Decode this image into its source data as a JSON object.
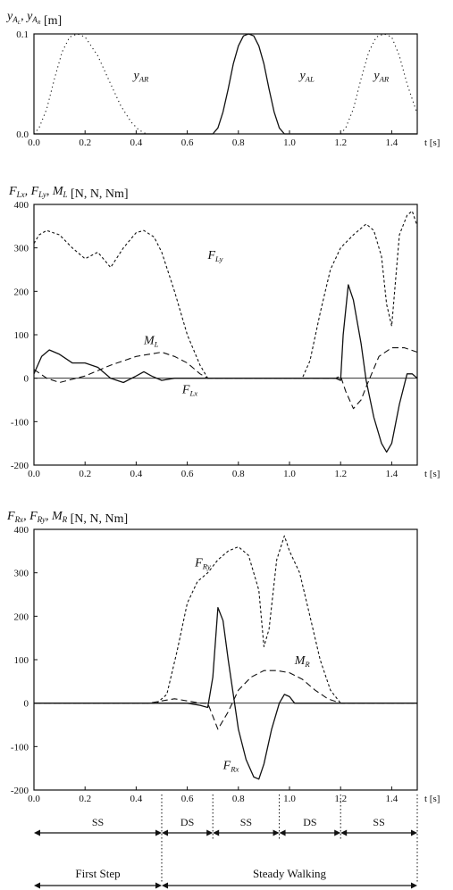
{
  "chart_data": [
    {
      "type": "line",
      "title": "y_{A_L}, y_{A_R}  [m]",
      "xlabel": "t [s]",
      "xlim": [
        0,
        1.5
      ],
      "ylim": [
        0,
        0.1
      ],
      "x_ticks": [
        "0.0",
        "0.2",
        "0.4",
        "0.6",
        "0.8",
        "1.0",
        "1.2",
        "1.4"
      ],
      "y_ticks": [
        "0.0",
        "0.1"
      ],
      "series": [
        {
          "name": "yAR",
          "style": "dotted",
          "x": [
            0.0,
            0.02,
            0.05,
            0.08,
            0.11,
            0.14,
            0.17,
            0.2,
            0.25,
            0.3,
            0.34,
            0.38,
            0.41,
            0.44,
            0.47,
            0.5
          ],
          "y": [
            0.0,
            0.006,
            0.025,
            0.055,
            0.082,
            0.097,
            0.1,
            0.097,
            0.078,
            0.05,
            0.028,
            0.012,
            0.004,
            0.0,
            0.0,
            0.0
          ]
        },
        {
          "name": "yAL",
          "style": "solid",
          "x": [
            0.0,
            0.7,
            0.72,
            0.74,
            0.76,
            0.78,
            0.8,
            0.82,
            0.84,
            0.86,
            0.88,
            0.9,
            0.92,
            0.94,
            0.96,
            0.98,
            1.0,
            1.5
          ],
          "y": [
            0.0,
            0.0,
            0.006,
            0.022,
            0.045,
            0.07,
            0.088,
            0.098,
            0.1,
            0.098,
            0.088,
            0.07,
            0.045,
            0.022,
            0.006,
            0.0,
            0.0,
            0.0
          ]
        },
        {
          "name": "yAR",
          "style": "dotted",
          "x": [
            1.2,
            1.22,
            1.25,
            1.28,
            1.31,
            1.34,
            1.37,
            1.4,
            1.43,
            1.46,
            1.5
          ],
          "y": [
            0.0,
            0.006,
            0.025,
            0.055,
            0.082,
            0.097,
            0.1,
            0.097,
            0.078,
            0.05,
            0.02
          ]
        }
      ],
      "annotations": [
        {
          "text": "yAR",
          "x": 0.39,
          "y": 0.055
        },
        {
          "text": "yAL",
          "x": 1.04,
          "y": 0.055
        },
        {
          "text": "yAR",
          "x": 1.33,
          "y": 0.055
        }
      ]
    },
    {
      "type": "line",
      "title": "F_{Lx}, F_{Ly}, M_L  [N, N, Nm]",
      "xlabel": "t [s]",
      "xlim": [
        0,
        1.5
      ],
      "ylim": [
        -200,
        400
      ],
      "x_ticks": [
        "0.0",
        "0.2",
        "0.4",
        "0.6",
        "0.8",
        "1.0",
        "1.2",
        "1.4"
      ],
      "y_ticks": [
        "-200",
        "-100",
        "0",
        "100",
        "200",
        "300",
        "400"
      ],
      "series": [
        {
          "name": "FLy",
          "style": "dashed-short",
          "x": [
            0.0,
            0.02,
            0.05,
            0.1,
            0.15,
            0.2,
            0.25,
            0.3,
            0.35,
            0.4,
            0.43,
            0.47,
            0.5,
            0.55,
            0.6,
            0.65,
            0.68,
            1.0,
            1.05,
            1.08,
            1.12,
            1.16,
            1.2,
            1.25,
            1.3,
            1.33,
            1.36,
            1.38,
            1.4,
            1.43,
            1.46,
            1.48,
            1.5
          ],
          "y": [
            310,
            330,
            340,
            330,
            300,
            275,
            290,
            255,
            300,
            335,
            340,
            325,
            290,
            200,
            100,
            30,
            0,
            0,
            0,
            40,
            150,
            250,
            300,
            330,
            355,
            340,
            280,
            170,
            120,
            330,
            375,
            385,
            350
          ]
        },
        {
          "name": "FLx",
          "style": "solid",
          "x": [
            0.0,
            0.03,
            0.06,
            0.1,
            0.15,
            0.2,
            0.25,
            0.3,
            0.35,
            0.4,
            0.43,
            0.46,
            0.5,
            0.55,
            0.6,
            0.65,
            0.68,
            1.18,
            1.2,
            1.21,
            1.23,
            1.25,
            1.28,
            1.3,
            1.33,
            1.36,
            1.38,
            1.4,
            1.43,
            1.46,
            1.48,
            1.5
          ],
          "y": [
            10,
            50,
            65,
            55,
            35,
            35,
            25,
            0,
            -10,
            5,
            15,
            5,
            -5,
            0,
            0,
            0,
            0,
            0,
            -5,
            100,
            215,
            180,
            80,
            -5,
            -90,
            -150,
            -170,
            -150,
            -60,
            10,
            10,
            0
          ]
        },
        {
          "name": "ML",
          "style": "dashed-long",
          "x": [
            0.0,
            0.05,
            0.1,
            0.2,
            0.3,
            0.4,
            0.5,
            0.55,
            0.6,
            0.65,
            0.68,
            1.18,
            1.2,
            1.22,
            1.25,
            1.28,
            1.3,
            1.35,
            1.4,
            1.45,
            1.5
          ],
          "y": [
            20,
            0,
            -10,
            5,
            30,
            50,
            60,
            50,
            35,
            10,
            0,
            0,
            5,
            -30,
            -70,
            -50,
            -20,
            50,
            70,
            70,
            60
          ]
        }
      ],
      "annotations": [
        {
          "text": "FLy",
          "x": 0.68,
          "y": 275
        },
        {
          "text": "ML",
          "x": 0.43,
          "y": 78
        },
        {
          "text": "FLx",
          "x": 0.58,
          "y": -35
        }
      ]
    },
    {
      "type": "line",
      "title": "F_{Rx}, F_{Ry}, M_R  [N, N, Nm]",
      "xlabel": "t [s]",
      "xlim": [
        0,
        1.5
      ],
      "ylim": [
        -200,
        400
      ],
      "x_ticks": [
        "0.0",
        "0.2",
        "0.4",
        "0.6",
        "0.8",
        "1.0",
        "1.2",
        "1.4"
      ],
      "y_ticks": [
        "-200",
        "-100",
        "0",
        "100",
        "200",
        "300",
        "400"
      ],
      "series": [
        {
          "name": "FRy",
          "style": "dashed-short",
          "x": [
            0.0,
            0.48,
            0.52,
            0.56,
            0.6,
            0.64,
            0.68,
            0.72,
            0.76,
            0.8,
            0.84,
            0.88,
            0.9,
            0.92,
            0.95,
            0.98,
            1.0,
            1.04,
            1.08,
            1.12,
            1.16,
            1.2,
            1.5
          ],
          "y": [
            0,
            0,
            20,
            120,
            230,
            280,
            300,
            330,
            350,
            360,
            340,
            260,
            130,
            170,
            330,
            385,
            350,
            300,
            200,
            100,
            30,
            0,
            0
          ]
        },
        {
          "name": "FRx",
          "style": "solid",
          "x": [
            0.0,
            0.45,
            0.5,
            0.55,
            0.6,
            0.65,
            0.68,
            0.7,
            0.72,
            0.74,
            0.76,
            0.78,
            0.8,
            0.83,
            0.86,
            0.88,
            0.9,
            0.93,
            0.96,
            0.98,
            1.0,
            1.02,
            1.05,
            1.1,
            1.2,
            1.5
          ],
          "y": [
            0,
            0,
            0,
            0,
            0,
            -5,
            -10,
            60,
            220,
            190,
            100,
            20,
            -60,
            -130,
            -170,
            -175,
            -140,
            -60,
            0,
            20,
            15,
            0,
            0,
            0,
            0,
            0
          ]
        },
        {
          "name": "MR",
          "style": "dashed-long",
          "x": [
            0.0,
            0.45,
            0.5,
            0.55,
            0.6,
            0.65,
            0.68,
            0.7,
            0.72,
            0.76,
            0.8,
            0.85,
            0.9,
            0.95,
            1.0,
            1.05,
            1.1,
            1.15,
            1.2,
            1.5
          ],
          "y": [
            0,
            0,
            5,
            10,
            5,
            0,
            0,
            -30,
            -60,
            -20,
            30,
            60,
            75,
            75,
            70,
            55,
            30,
            10,
            0,
            0
          ]
        }
      ],
      "annotations": [
        {
          "text": "FRy",
          "x": 0.63,
          "y": 315
        },
        {
          "text": "MR",
          "x": 1.02,
          "y": 90
        },
        {
          "text": "FRx",
          "x": 0.74,
          "y": -152
        }
      ]
    }
  ],
  "phases": {
    "row1": [
      "SS",
      "DS",
      "SS",
      "DS",
      "SS"
    ],
    "row2": [
      "First Step",
      "Steady Walking"
    ]
  }
}
